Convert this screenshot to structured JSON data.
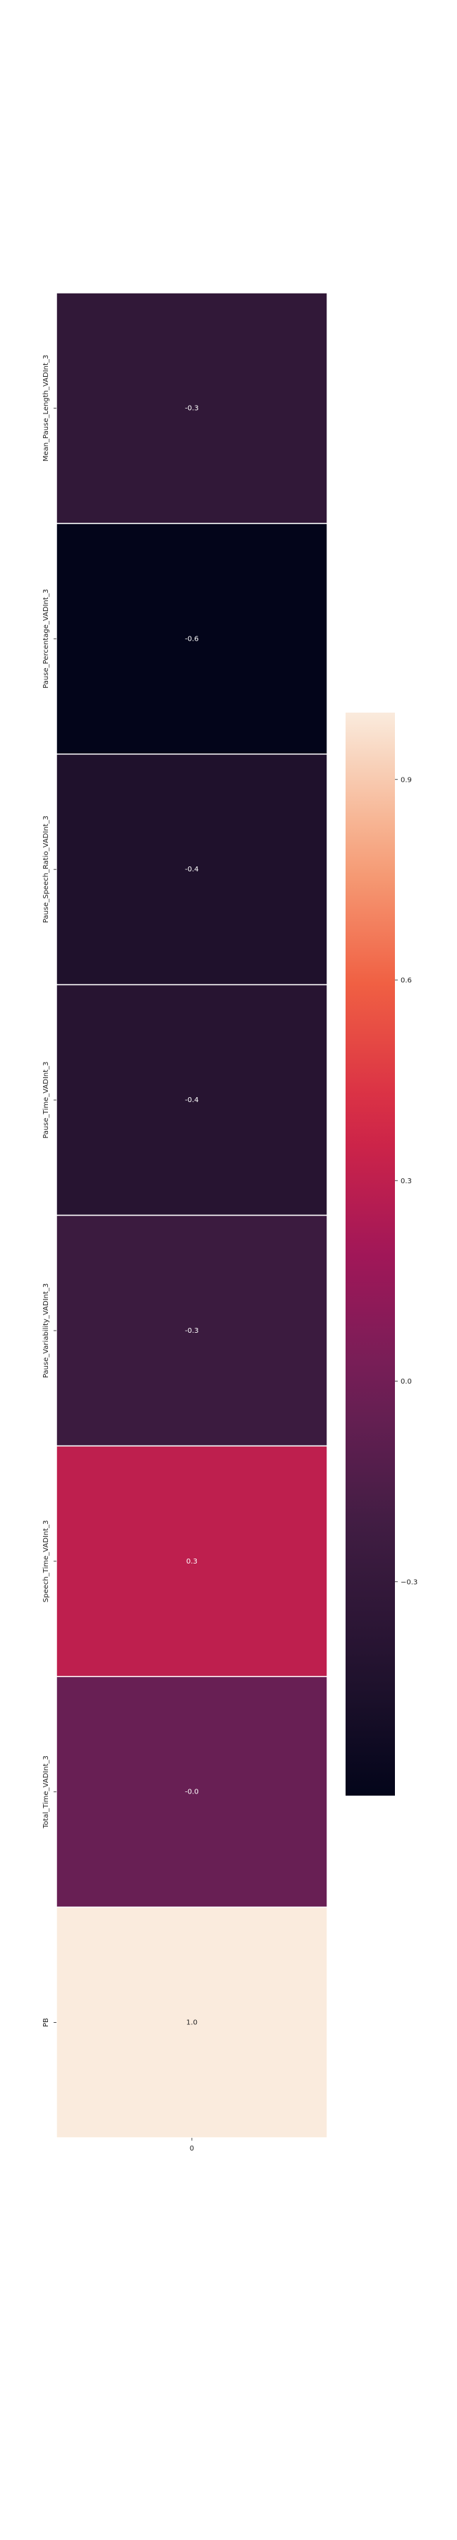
{
  "chart_data": {
    "type": "heatmap",
    "rows": [
      "Mean_Pause_Length_VADInt_3",
      "Pause_Percentage_VADInt_3",
      "Pause_Speech_Ratio_VADInt_3",
      "Pause_Time_VADInt_3",
      "Pause_Variability_VADInt_3",
      "Speech_Time_VADInt_3",
      "Total_Time_VADInt_3",
      "PB"
    ],
    "columns": [
      "0"
    ],
    "values": [
      -0.33,
      -0.62,
      -0.45,
      -0.4,
      -0.26,
      0.3,
      -0.04,
      1.0
    ],
    "annotations": [
      "-0.3",
      "-0.6",
      "-0.4",
      "-0.4",
      "-0.3",
      "0.3",
      "-0.0",
      "1.0"
    ],
    "colorbar": {
      "min": -0.62,
      "max": 1.0,
      "ticks": [
        -0.3,
        0.0,
        0.3,
        0.6,
        0.9
      ],
      "tick_labels": [
        "−0.3",
        "0.0",
        "0.3",
        "0.6",
        "0.9"
      ]
    },
    "colormap": "rocket",
    "title": "",
    "xlabel": "",
    "ylabel": ""
  }
}
